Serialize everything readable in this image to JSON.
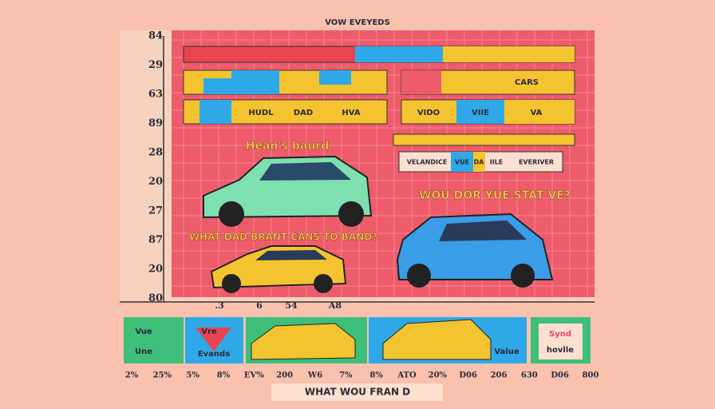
{
  "header": {
    "title": "VOW EVEYEDS"
  },
  "axis": {
    "left": [
      "84",
      "29",
      "63",
      "89",
      "28",
      "20",
      "27",
      "87",
      "20",
      "80"
    ],
    "bottom": [
      ".3",
      "6",
      "54",
      "A8"
    ]
  },
  "rows": {
    "top_right": "CARS",
    "left": [
      "HUDL",
      "DAD",
      "HVA"
    ],
    "right": [
      "VIDO",
      "VIIE",
      "VA"
    ],
    "strip": [
      "VELANDICE",
      "VUE",
      "DA",
      "IILE",
      "EVERIVER"
    ]
  },
  "captions": {
    "brand": "Hean's baurd",
    "question": "WOU DOR YUE STAT VE?",
    "prompt": "WHAT DAD BRANT CANS TO BAND?"
  },
  "panels": {
    "first": [
      "Vue",
      "Une"
    ],
    "second": [
      "Vre",
      "Evands"
    ],
    "fourth": "Value",
    "fifth": [
      "Synd",
      "hovlle"
    ]
  },
  "footer": {
    "numbers": [
      "2%",
      "25%",
      "5%",
      "8%",
      "EV%",
      "200",
      "W6",
      "7%",
      "8%",
      "ATO",
      "20%",
      "D06",
      "206",
      "630",
      "D06",
      "800"
    ],
    "title": "WHAT WOU FRAN D"
  }
}
